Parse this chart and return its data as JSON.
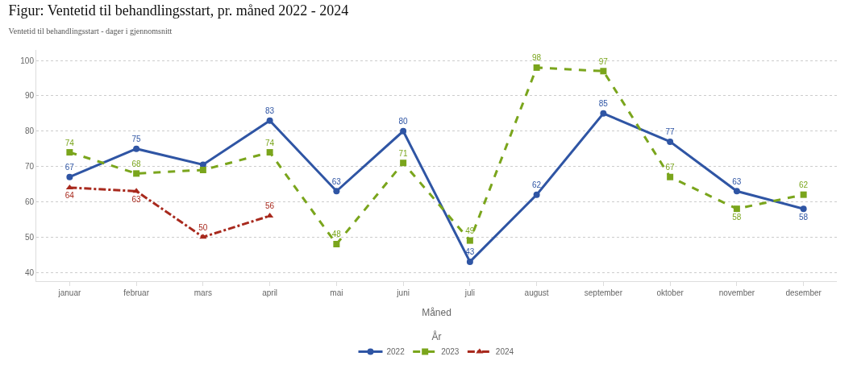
{
  "chart_data": {
    "type": "line",
    "title": "Figur: Ventetid til behandlingsstart, pr. måned 2022 - 2024",
    "subtitle": "Ventetid til behandlingsstart - dager i gjennomsnitt",
    "xlabel": "Måned",
    "legend_title": "År",
    "categories": [
      "januar",
      "februar",
      "mars",
      "april",
      "mai",
      "juni",
      "juli",
      "august",
      "september",
      "oktober",
      "november",
      "desember"
    ],
    "series": [
      {
        "name": "2022",
        "color": "#2f55a4",
        "marker": "circle",
        "line_style": "solid",
        "values": [
          67,
          75,
          70.5,
          83,
          63,
          80,
          43,
          62,
          85,
          77,
          63,
          58
        ],
        "value_labels": [
          "67",
          "75",
          null,
          "83",
          "63",
          "80",
          "43",
          "62",
          "85",
          "77",
          "63",
          "58"
        ]
      },
      {
        "name": "2023",
        "color": "#7aa51c",
        "marker": "square",
        "line_style": "dashed",
        "values": [
          74,
          68,
          69,
          74,
          48,
          71,
          49,
          98,
          97,
          67,
          58,
          62
        ],
        "value_labels": [
          "74",
          "68",
          null,
          "74",
          "48",
          "71",
          "49",
          "98",
          "97",
          "67",
          "58",
          "62"
        ]
      },
      {
        "name": "2024",
        "color": "#a8291d",
        "marker": "triangle",
        "line_style": "dashdot",
        "values": [
          64,
          63,
          50,
          56,
          null,
          null,
          null,
          null,
          null,
          null,
          null,
          null
        ],
        "value_labels": [
          "64",
          "63",
          "50",
          "56",
          null,
          null,
          null,
          null,
          null,
          null,
          null,
          null
        ]
      }
    ],
    "ylim": [
      37.5,
      103
    ],
    "yticks": [
      40,
      50,
      60,
      70,
      80,
      90,
      100
    ],
    "grid": "y",
    "legend": "bottom"
  }
}
